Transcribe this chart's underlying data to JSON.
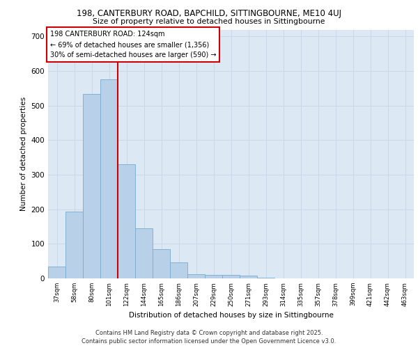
{
  "title_line1": "198, CANTERBURY ROAD, BAPCHILD, SITTINGBOURNE, ME10 4UJ",
  "title_line2": "Size of property relative to detached houses in Sittingbourne",
  "xlabel": "Distribution of detached houses by size in Sittingbourne",
  "ylabel": "Number of detached properties",
  "categories": [
    "37sqm",
    "58sqm",
    "80sqm",
    "101sqm",
    "122sqm",
    "144sqm",
    "165sqm",
    "186sqm",
    "207sqm",
    "229sqm",
    "250sqm",
    "271sqm",
    "293sqm",
    "314sqm",
    "335sqm",
    "357sqm",
    "378sqm",
    "399sqm",
    "421sqm",
    "442sqm",
    "463sqm"
  ],
  "values": [
    35,
    193,
    533,
    575,
    330,
    145,
    85,
    46,
    13,
    10,
    10,
    8,
    3,
    0,
    0,
    0,
    0,
    0,
    0,
    0,
    0
  ],
  "bar_color": "#b8d0e8",
  "bar_edgecolor": "#7aaacc",
  "grid_color": "#c8d8e8",
  "background_color": "#dce8f4",
  "vline_x_index": 4,
  "vline_color": "#cc0000",
  "annotation_text": "198 CANTERBURY ROAD: 124sqm\n← 69% of detached houses are smaller (1,356)\n30% of semi-detached houses are larger (590) →",
  "annotation_box_facecolor": "#ffffff",
  "annotation_box_edgecolor": "#cc0000",
  "footer_text": "Contains HM Land Registry data © Crown copyright and database right 2025.\nContains public sector information licensed under the Open Government Licence v3.0.",
  "ylim": [
    0,
    720
  ],
  "yticks": [
    0,
    100,
    200,
    300,
    400,
    500,
    600,
    700
  ]
}
